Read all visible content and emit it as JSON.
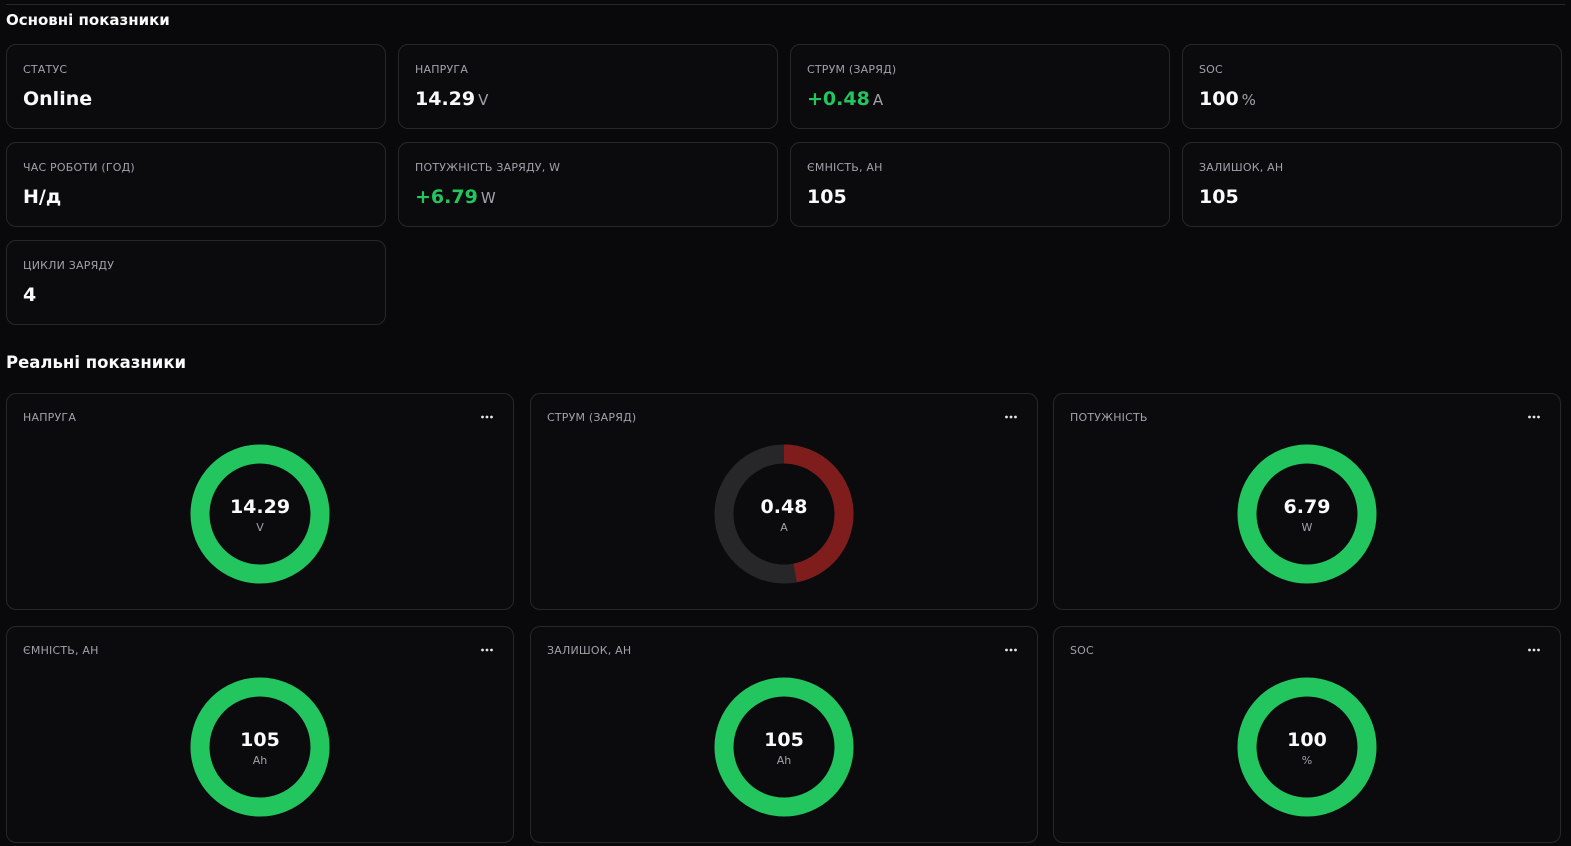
{
  "basic": {
    "title": "Основні показники",
    "cards": [
      {
        "label": "Статус",
        "value": "Online",
        "unit": "",
        "positive": false
      },
      {
        "label": "Напруга",
        "value": "14.29",
        "unit": "V",
        "positive": false
      },
      {
        "label": "Струм (заряд)",
        "value": "+0.48",
        "unit": "A",
        "positive": true
      },
      {
        "label": "SOC",
        "value": "100",
        "unit": "%",
        "positive": false
      },
      {
        "label": "Час роботи (год)",
        "value": "Н/д",
        "unit": "",
        "positive": false
      },
      {
        "label": "Потужність заряду, W",
        "value": "+6.79",
        "unit": "W",
        "positive": true
      },
      {
        "label": "Ємність, Ah",
        "value": "105",
        "unit": "",
        "positive": false
      },
      {
        "label": "Залишок, Ah",
        "value": "105",
        "unit": "",
        "positive": false
      },
      {
        "label": "Цикли заряду",
        "value": "4",
        "unit": "",
        "positive": false
      }
    ]
  },
  "realtime": {
    "title": "Реальні показники",
    "gauges": [
      {
        "label": "Напруга",
        "value": "14.29",
        "unit": "V",
        "fill": 1.0,
        "color": "#22c55e",
        "menu_icon": "more-horizontal-icon"
      },
      {
        "label": "Струм (заряд)",
        "value": "0.48",
        "unit": "A",
        "fill": 0.47,
        "color": "#7f1d1d",
        "menu_icon": "more-horizontal-icon"
      },
      {
        "label": "Потужність",
        "value": "6.79",
        "unit": "W",
        "fill": 1.0,
        "color": "#22c55e",
        "menu_icon": "more-horizontal-icon"
      },
      {
        "label": "Ємність, Ah",
        "value": "105",
        "unit": "Ah",
        "fill": 1.0,
        "color": "#22c55e",
        "menu_icon": "more-horizontal-icon"
      },
      {
        "label": "Залишок, Ah",
        "value": "105",
        "unit": "Ah",
        "fill": 1.0,
        "color": "#22c55e",
        "menu_icon": "more-horizontal-icon"
      },
      {
        "label": "SOC",
        "value": "100",
        "unit": "%",
        "fill": 1.0,
        "color": "#22c55e",
        "menu_icon": "more-horizontal-icon"
      }
    ]
  },
  "colors": {
    "background": "#09090b",
    "card_border": "#27272a",
    "positive": "#22c55e",
    "track": "#27272a",
    "label": "#a1a1aa"
  }
}
